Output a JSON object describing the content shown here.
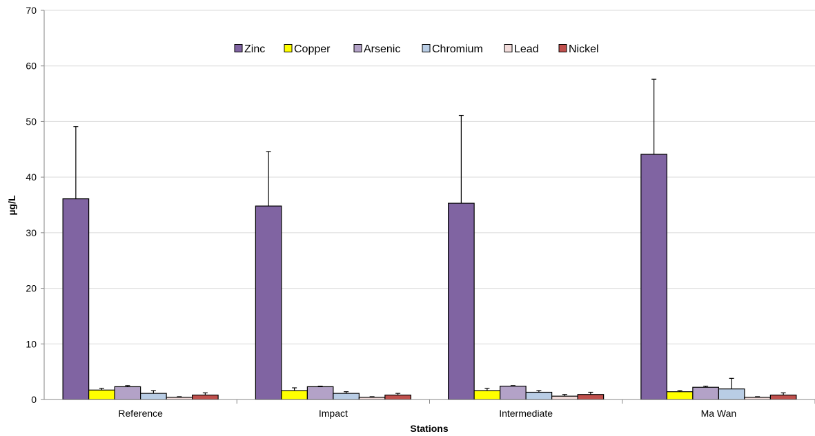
{
  "chart_data": {
    "type": "bar",
    "title": "",
    "xlabel": "Stations",
    "ylabel": "µg/L",
    "ylim": [
      0,
      70
    ],
    "yticks": [
      0,
      10,
      20,
      30,
      40,
      50,
      60,
      70
    ],
    "grid": true,
    "legend_position": "top-center",
    "categories": [
      "Reference",
      "Impact",
      "Intermediate",
      "Ma Wan"
    ],
    "series": [
      {
        "name": "Zinc",
        "color": "#8064a2",
        "values": [
          36.1,
          34.8,
          35.3,
          44.1
        ],
        "errors": [
          13.0,
          9.8,
          15.8,
          13.5
        ]
      },
      {
        "name": "Copper",
        "color": "#ffff00",
        "values": [
          1.7,
          1.6,
          1.6,
          1.4
        ],
        "errors": [
          0.3,
          0.5,
          0.4,
          0.2
        ]
      },
      {
        "name": "Arsenic",
        "color": "#b3a2c7",
        "values": [
          2.3,
          2.3,
          2.4,
          2.2
        ],
        "errors": [
          0.2,
          0.1,
          0.1,
          0.2
        ]
      },
      {
        "name": "Chromium",
        "color": "#b9cde5",
        "values": [
          1.1,
          1.1,
          1.3,
          1.9
        ],
        "errors": [
          0.5,
          0.3,
          0.3,
          1.9
        ]
      },
      {
        "name": "Lead",
        "color": "#f2dcdb",
        "values": [
          0.4,
          0.4,
          0.6,
          0.4
        ],
        "errors": [
          0.1,
          0.1,
          0.3,
          0.1
        ]
      },
      {
        "name": "Nickel",
        "color": "#c0504d",
        "values": [
          0.8,
          0.8,
          0.9,
          0.8
        ],
        "errors": [
          0.4,
          0.3,
          0.4,
          0.4
        ]
      }
    ]
  }
}
